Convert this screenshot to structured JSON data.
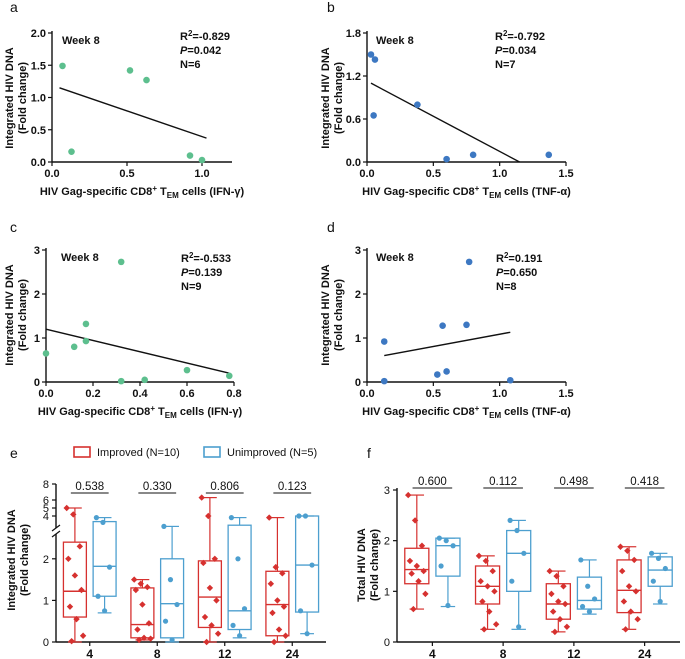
{
  "chart_data": [
    {
      "id": "a",
      "type": "scatter",
      "panel_label": "a",
      "annotation": "Week 8",
      "stats": [
        "R²=-0.829",
        "P=0.042",
        "N=6"
      ],
      "ylabel_lines": [
        "Integrated HIV DNA",
        "(Fold change)"
      ],
      "xlabel": "HIV Gag-specific CD8⁺ T_EM cells (IFN-γ)",
      "xlim": [
        0,
        1.2
      ],
      "ylim": [
        0,
        2.0
      ],
      "xticks": [
        0.0,
        0.5,
        1.0
      ],
      "yticks": [
        0.0,
        0.5,
        1.0,
        1.5,
        2.0
      ],
      "xtick_labels": [
        "0.0",
        "0.5",
        "1.0"
      ],
      "ytick_labels": [
        "0.0",
        "0.5",
        "1.0",
        "1.5",
        "2.0"
      ],
      "color": "#5dbf8e",
      "points": [
        [
          0.07,
          1.49
        ],
        [
          0.13,
          0.16
        ],
        [
          0.52,
          1.42
        ],
        [
          0.63,
          1.27
        ],
        [
          0.92,
          0.1
        ],
        [
          1.0,
          0.03
        ]
      ],
      "fit": [
        [
          0.05,
          1.15
        ],
        [
          1.03,
          0.37
        ]
      ]
    },
    {
      "id": "b",
      "type": "scatter",
      "panel_label": "b",
      "annotation": "Week 8",
      "stats": [
        "R²=-0.792",
        "P=0.034",
        "N=7"
      ],
      "ylabel_lines": [
        "Integrated HIV DNA",
        "(Fold change)"
      ],
      "xlabel": "HIV Gag-specific CD8⁺ T_EM cells (TNF-α)",
      "xlim": [
        0,
        1.5
      ],
      "ylim": [
        0,
        1.8
      ],
      "xticks": [
        0.0,
        0.5,
        1.0,
        1.5
      ],
      "yticks": [
        0.0,
        0.6,
        1.2,
        1.8
      ],
      "xtick_labels": [
        "0.0",
        "0.5",
        "1.0",
        "1.5"
      ],
      "ytick_labels": [
        "0.0",
        "0.6",
        "1.2",
        "1.8"
      ],
      "color": "#3d78c2",
      "points": [
        [
          0.03,
          1.5
        ],
        [
          0.06,
          1.43
        ],
        [
          0.05,
          0.65
        ],
        [
          0.38,
          0.8
        ],
        [
          0.6,
          0.04
        ],
        [
          0.8,
          0.1
        ],
        [
          1.37,
          0.1
        ]
      ],
      "fit": [
        [
          0.03,
          1.1
        ],
        [
          1.15,
          0.0
        ]
      ]
    },
    {
      "id": "c",
      "type": "scatter",
      "panel_label": "c",
      "annotation": "Week 8",
      "stats": [
        "R²=-0.533",
        "P=0.139",
        "N=9"
      ],
      "ylabel_lines": [
        "Integrated HIV DNA",
        "(Fold change)"
      ],
      "xlabel": "HIV Gag-specific CD8⁺ T_EM cells (IFN-γ)",
      "xlim": [
        0,
        0.8
      ],
      "ylim": [
        0,
        3
      ],
      "xticks": [
        0.0,
        0.2,
        0.4,
        0.6,
        0.8
      ],
      "yticks": [
        0,
        1,
        2,
        3
      ],
      "xtick_labels": [
        "0.0",
        "0.2",
        "0.4",
        "0.6",
        "0.8"
      ],
      "ytick_labels": [
        "0",
        "1",
        "2",
        "3"
      ],
      "color": "#5dbf8e",
      "points": [
        [
          0.0,
          0.65
        ],
        [
          0.12,
          0.8
        ],
        [
          0.17,
          0.93
        ],
        [
          0.17,
          1.32
        ],
        [
          0.32,
          2.73
        ],
        [
          0.32,
          0.02
        ],
        [
          0.42,
          0.05
        ],
        [
          0.6,
          0.27
        ],
        [
          0.78,
          0.14
        ]
      ],
      "fit": [
        [
          0.0,
          1.2
        ],
        [
          0.78,
          0.2
        ]
      ]
    },
    {
      "id": "d",
      "type": "scatter",
      "panel_label": "d",
      "annotation": "Week 8",
      "stats": [
        "R²=0.191",
        "P=0.650",
        "N=8"
      ],
      "ylabel_lines": [
        "Integrated HIV DNA",
        "(Fold change)"
      ],
      "xlabel": "HIV Gag-specific CD8⁺ T_EM cells (TNF-α)",
      "xlim": [
        0,
        1.5
      ],
      "ylim": [
        0,
        3
      ],
      "xticks": [
        0.0,
        0.5,
        1.0,
        1.5
      ],
      "yticks": [
        0,
        1,
        2,
        3
      ],
      "xtick_labels": [
        "0.0",
        "0.5",
        "1.0",
        "1.5"
      ],
      "ytick_labels": [
        "0",
        "1",
        "2",
        "3"
      ],
      "color": "#3d78c2",
      "points": [
        [
          0.13,
          0.92
        ],
        [
          0.13,
          0.02
        ],
        [
          0.53,
          0.17
        ],
        [
          0.57,
          1.28
        ],
        [
          0.6,
          0.24
        ],
        [
          0.75,
          1.3
        ],
        [
          0.77,
          2.73
        ],
        [
          1.08,
          0.04
        ]
      ],
      "fit": [
        [
          0.13,
          0.6
        ],
        [
          1.08,
          1.13
        ]
      ]
    },
    {
      "id": "e",
      "type": "box",
      "panel_label": "e",
      "ylabel_lines": [
        "Integrated HIV DNA",
        "(Fold change)"
      ],
      "categories": [
        "4",
        "8",
        "12",
        "24"
      ],
      "ytick_labels": [
        "0",
        "1",
        "2",
        "4",
        "5",
        "6",
        "8"
      ],
      "pvalues": [
        "0.538",
        "0.330",
        "0.806",
        "0.123"
      ],
      "series": [
        {
          "name": "Improved (N=10)",
          "color": "#d6312f",
          "boxes": [
            {
              "min": 0.0,
              "q1": 0.6,
              "median": 1.22,
              "q3": 2.4,
              "max": 5.0,
              "points": [
                5.0,
                4.2,
                2.3,
                2.0,
                1.6,
                1.25,
                0.85,
                0.55,
                0.15,
                0.02
              ]
            },
            {
              "min": 0.05,
              "q1": 0.1,
              "median": 0.42,
              "q3": 1.3,
              "max": 1.5,
              "points": [
                1.5,
                1.4,
                1.32,
                1.25,
                0.9,
                0.45,
                0.3,
                0.1,
                0.08,
                0.05
              ]
            },
            {
              "min": 0.0,
              "q1": 0.35,
              "median": 1.08,
              "q3": 1.95,
              "max": 6.3,
              "points": [
                6.3,
                4.0,
                2.0,
                1.9,
                1.3,
                1.0,
                0.6,
                0.4,
                0.2,
                0.0
              ]
            },
            {
              "min": 0.0,
              "q1": 0.15,
              "median": 0.9,
              "q3": 1.7,
              "max": 3.8,
              "points": [
                3.8,
                1.8,
                1.65,
                1.4,
                1.0,
                0.85,
                0.7,
                0.3,
                0.15,
                0.0
              ]
            }
          ]
        },
        {
          "name": "Unimproved (N=5)",
          "color": "#4d9fcf",
          "boxes": [
            {
              "min": 0.7,
              "q1": 1.1,
              "median": 1.82,
              "q3": 3.3,
              "max": 3.8,
              "points": [
                3.8,
                3.2,
                1.8,
                1.1,
                0.75
              ]
            },
            {
              "min": 0.0,
              "q1": 0.1,
              "median": 0.92,
              "q3": 2.0,
              "max": 2.7,
              "points": [
                2.7,
                1.5,
                0.9,
                0.5,
                0.05
              ]
            },
            {
              "min": 0.1,
              "q1": 0.3,
              "median": 0.75,
              "q3": 2.85,
              "max": 3.8,
              "points": [
                3.8,
                2.0,
                0.8,
                0.4,
                0.15
              ]
            },
            {
              "min": 0.2,
              "q1": 0.72,
              "median": 1.85,
              "q3": 4.0,
              "max": 4.0,
              "points": [
                4.0,
                4.0,
                1.85,
                0.75,
                0.2
              ]
            }
          ]
        }
      ]
    },
    {
      "id": "f",
      "type": "box",
      "panel_label": "f",
      "ylabel_lines": [
        "Total HIV DNA",
        "(Fold change)"
      ],
      "categories": [
        "4",
        "8",
        "12",
        "24"
      ],
      "ylim": [
        0,
        3
      ],
      "yticks": [
        0,
        1,
        2,
        3
      ],
      "ytick_labels": [
        "0",
        "1",
        "2",
        "3"
      ],
      "pvalues": [
        "0.600",
        "0.112",
        "0.498",
        "0.418"
      ],
      "series": [
        {
          "name": "Improved (N=10)",
          "color": "#d6312f",
          "boxes": [
            {
              "min": 0.65,
              "q1": 1.15,
              "median": 1.43,
              "q3": 1.85,
              "max": 2.9,
              "points": [
                2.9,
                2.4,
                1.9,
                1.6,
                1.5,
                1.4,
                1.35,
                1.2,
                0.95,
                0.65
              ]
            },
            {
              "min": 0.25,
              "q1": 0.75,
              "median": 1.1,
              "q3": 1.5,
              "max": 1.7,
              "points": [
                1.7,
                1.6,
                1.4,
                1.2,
                1.1,
                1.0,
                0.8,
                0.6,
                0.35,
                0.25
              ]
            },
            {
              "min": 0.2,
              "q1": 0.45,
              "median": 0.75,
              "q3": 1.15,
              "max": 1.4,
              "points": [
                1.4,
                1.3,
                1.1,
                0.95,
                0.8,
                0.75,
                0.6,
                0.45,
                0.3,
                0.2
              ]
            },
            {
              "min": 0.25,
              "q1": 0.58,
              "median": 1.02,
              "q3": 1.62,
              "max": 1.88,
              "points": [
                1.88,
                1.8,
                1.62,
                1.4,
                1.1,
                1.0,
                0.8,
                0.6,
                0.45,
                0.25
              ]
            }
          ]
        },
        {
          "name": "Unimproved (N=5)",
          "color": "#4d9fcf",
          "boxes": [
            {
              "min": 0.7,
              "q1": 1.3,
              "median": 1.9,
              "q3": 2.05,
              "max": 2.05,
              "points": [
                2.05,
                2.0,
                1.9,
                1.5,
                0.72
              ]
            },
            {
              "min": 0.25,
              "q1": 1.0,
              "median": 1.75,
              "q3": 2.2,
              "max": 2.4,
              "points": [
                2.4,
                2.2,
                1.75,
                1.2,
                0.3
              ]
            },
            {
              "min": 0.55,
              "q1": 0.65,
              "median": 0.82,
              "q3": 1.28,
              "max": 1.62,
              "points": [
                1.62,
                1.1,
                0.85,
                0.7,
                0.6
              ]
            },
            {
              "min": 0.75,
              "q1": 1.1,
              "median": 1.42,
              "q3": 1.68,
              "max": 1.75,
              "points": [
                1.75,
                1.65,
                1.45,
                1.2,
                0.8
              ]
            }
          ]
        }
      ]
    }
  ]
}
